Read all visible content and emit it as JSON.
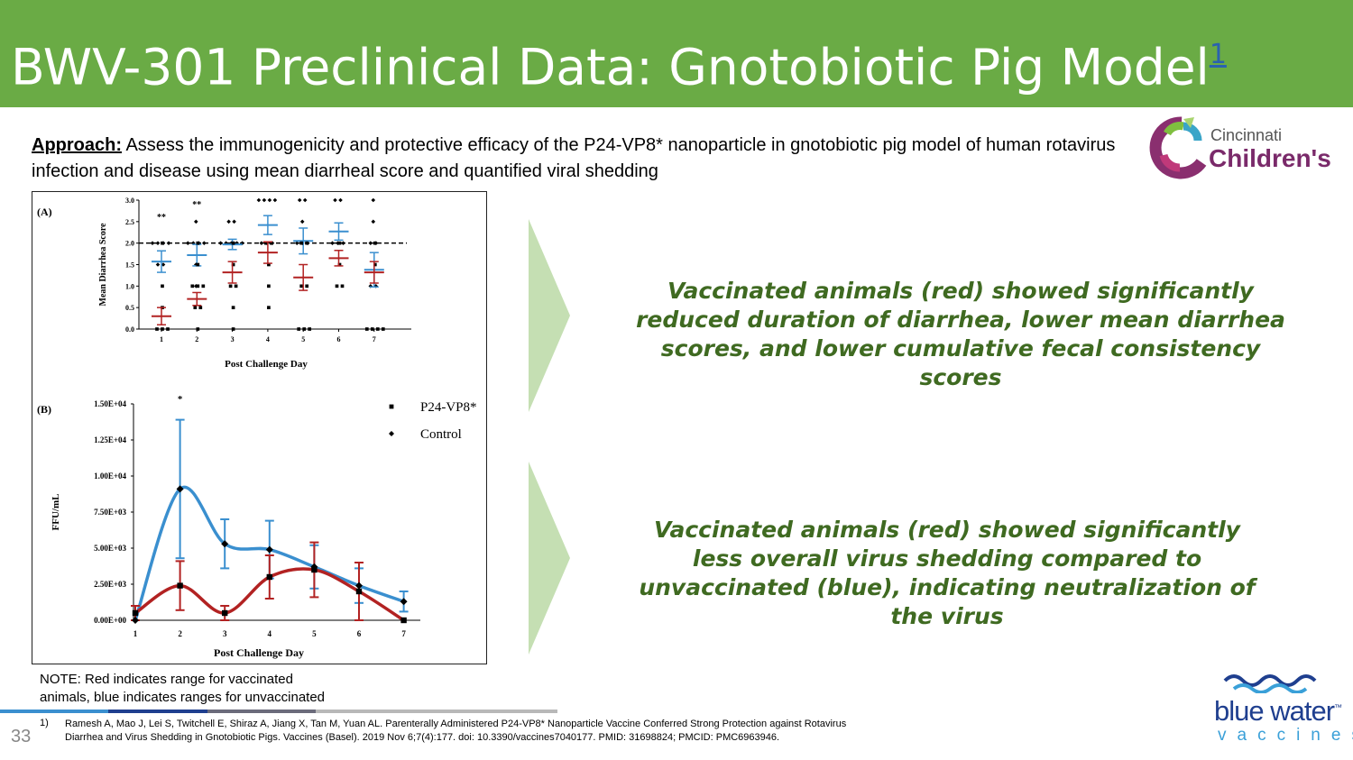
{
  "header": {
    "title": "BWV-301 Preclinical Data: Gnotobiotic Pig Model",
    "footnote_ref": "1"
  },
  "approach": {
    "label": "Approach:",
    "text": " Assess the immunogenicity and protective efficacy of the P24-VP8* nanoparticle in gnotobiotic pig model of human rotavirus infection and disease using mean diarrheal score and quantified viral shedding"
  },
  "logos": {
    "cincinnati": {
      "line1": "Cincinnati",
      "line2": "Children's"
    },
    "blue_water": {
      "line1": "blue water",
      "line2": "vaccines",
      "tm": "™"
    }
  },
  "findings": {
    "first": "Vaccinated animals (red) showed significantly reduced duration of diarrhea, lower mean diarrhea scores, and lower cumulative fecal consistency scores",
    "second": "Vaccinated animals (red) showed significantly less overall virus shedding compared to unvaccinated (blue), indicating neutralization of the virus"
  },
  "note": {
    "line1": "NOTE: Red indicates range for vaccinated",
    "line2": "animals, blue indicates ranges for unvaccinated"
  },
  "footer": {
    "page_number": "33",
    "ref_number": "1)",
    "reference": "Ramesh A, Mao J, Lei S, Twitchell E, Shiraz A, Jiang X, Tan M, Yuan AL. Parenterally Administered P24-VP8* Nanoparticle Vaccine Conferred Strong Protection against Rotavirus Diarrhea and Virus Shedding in Gnotobiotic Pigs. Vaccines (Basel). 2019 Nov 6;7(4):177. doi: 10.3390/vaccines7040177. PMID: 31698824; PMCID: PMC6963946."
  },
  "colors": {
    "header_green": "#6aab45",
    "finding_green": "#3f6a21",
    "vaccinated_red": "#b22222",
    "control_blue": "#3a8fcf"
  },
  "chart_data": [
    {
      "panel_label": "(A)",
      "type": "scatter",
      "xlabel": "Post Challenge Day",
      "ylabel": "Mean Diarrhea Score",
      "x_ticks": [
        "1",
        "2",
        "3",
        "4",
        "5",
        "6",
        "7"
      ],
      "y_ticks": [
        "0.0",
        "0.5",
        "1.0",
        "1.5",
        "2.0",
        "2.5",
        "3.0"
      ],
      "ylim": [
        0,
        3
      ],
      "threshold": 2.0,
      "significance": [
        {
          "day": 1,
          "label": "**",
          "y": 2.6
        },
        {
          "day": 2,
          "label": "**",
          "y": 2.9
        }
      ],
      "series": [
        {
          "name": "Control",
          "color": "#3a8fcf",
          "marker": "diamond",
          "mean": [
            1.57,
            1.72,
            1.97,
            2.42,
            2.05,
            2.27,
            1.38
          ],
          "err": [
            0.25,
            0.25,
            0.12,
            0.22,
            0.3,
            0.2,
            0.4
          ],
          "points": [
            [
              2,
              2,
              2,
              2,
              1.5,
              1.5
            ],
            [
              2.5,
              2,
              2,
              2,
              2,
              1.5,
              1.0
            ],
            [
              2.5,
              2.5,
              2,
              2,
              2,
              2,
              2
            ],
            [
              3,
              3,
              3,
              3,
              2,
              2,
              2
            ],
            [
              3,
              3,
              2.5,
              2,
              2,
              2
            ],
            [
              3,
              3,
              2,
              2,
              2
            ],
            [
              3,
              2.5,
              2,
              2,
              1.0,
              1.0
            ]
          ]
        },
        {
          "name": "P24-VP8*",
          "color": "#b22222",
          "marker": "square",
          "mean": [
            0.3,
            0.7,
            1.32,
            1.78,
            1.2,
            1.65,
            1.32
          ],
          "err": [
            0.2,
            0.15,
            0.25,
            0.25,
            0.3,
            0.18,
            0.25
          ],
          "points": [
            [
              2,
              1.0,
              0.5,
              0,
              0,
              0
            ],
            [
              2,
              1.5,
              1.0,
              1.0,
              1.0,
              0.5,
              0.5,
              0
            ],
            [
              2,
              1.5,
              1.0,
              1.0,
              0.5,
              0
            ],
            [
              2,
              2,
              1.5,
              1.0,
              0.5
            ],
            [
              2,
              2,
              1.0,
              1.0,
              0,
              0,
              0
            ],
            [
              2,
              1.5,
              1.0,
              1.0
            ],
            [
              2,
              1.5,
              0,
              0,
              0,
              0
            ]
          ]
        }
      ]
    },
    {
      "panel_label": "(B)",
      "type": "line",
      "xlabel": "Post Challenge Day",
      "ylabel": "FFU/mL",
      "x": [
        1,
        2,
        3,
        4,
        5,
        6,
        7
      ],
      "y_ticks": [
        "0.00E+00",
        "2.50E+03",
        "5.00E+03",
        "7.50E+03",
        "1.00E+04",
        "1.25E+04",
        "1.50E+04"
      ],
      "ylim": [
        0,
        15000
      ],
      "significance": [
        {
          "day": 2,
          "label": "*",
          "y": 15300
        }
      ],
      "legend": "top-right",
      "series": [
        {
          "name": "Control",
          "color": "#3a8fcf",
          "marker": "diamond",
          "values": [
            0,
            9100,
            5300,
            4900,
            3700,
            2400,
            1300
          ],
          "err": [
            0,
            4800,
            1700,
            2000,
            1500,
            1200,
            700
          ]
        },
        {
          "name": "P24-VP8*",
          "color": "#b22222",
          "marker": "square",
          "values": [
            500,
            2400,
            500,
            3000,
            3500,
            2000,
            0
          ],
          "err": [
            500,
            1700,
            500,
            1500,
            1900,
            2000,
            0
          ]
        }
      ]
    }
  ]
}
